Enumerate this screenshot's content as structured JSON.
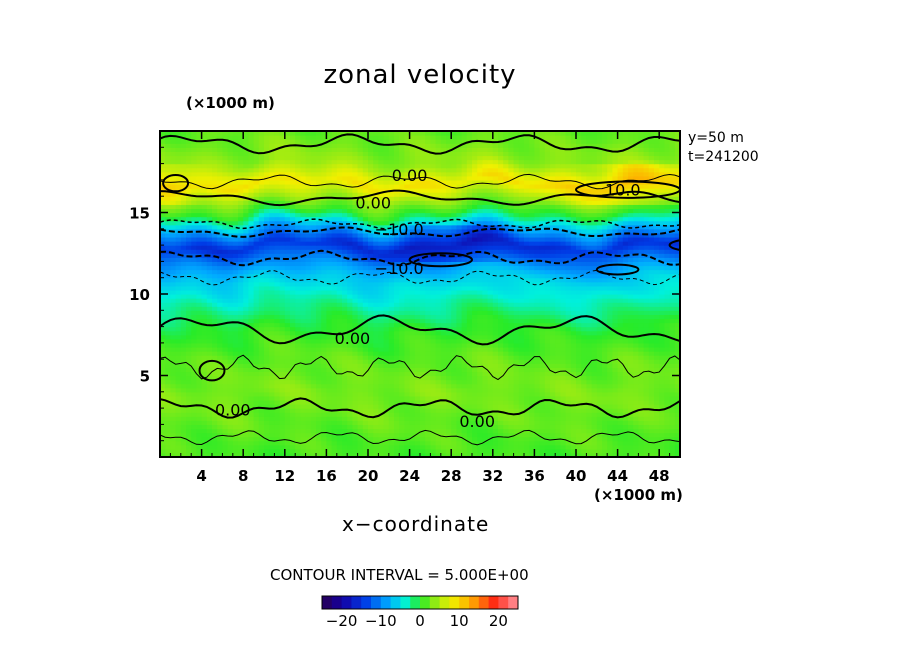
{
  "chart_data": {
    "type": "heatmap",
    "title": "zonal velocity",
    "xlabel": "x−coordinate",
    "x_unit_label": "(×1000 m)",
    "y_unit_label": "(×1000 m)",
    "xlim": [
      0,
      50
    ],
    "ylim": [
      0,
      20
    ],
    "x_ticks": [
      4,
      8,
      12,
      16,
      20,
      24,
      28,
      32,
      36,
      40,
      44,
      48
    ],
    "y_ticks": [
      5,
      10,
      15
    ],
    "info": [
      "y=50  m",
      "t=241200"
    ],
    "contour_interval_text": "CONTOUR INTERVAL = 5.000E+00",
    "contour_labels": [
      {
        "text": "0.00",
        "x": 24,
        "y": 17.3
      },
      {
        "text": "0.00",
        "x": 20.5,
        "y": 15.6
      },
      {
        "text": "10.0",
        "x": 44.5,
        "y": 16.4
      },
      {
        "text": "−10.0",
        "x": 23,
        "y": 14.0
      },
      {
        "text": "−10.0",
        "x": 23,
        "y": 11.6
      },
      {
        "text": "0.00",
        "x": 18.5,
        "y": 7.3
      },
      {
        "text": "0.00",
        "x": 7,
        "y": 2.9
      },
      {
        "text": "0.00",
        "x": 30.5,
        "y": 2.2
      }
    ],
    "field_profile": {
      "y": [
        0,
        2,
        4,
        6,
        8,
        10,
        11,
        12,
        13,
        14,
        15,
        16,
        16.8,
        18,
        20
      ],
      "u": [
        1,
        2,
        3,
        2,
        0,
        -4,
        -6,
        -10,
        -15,
        -8,
        0,
        5,
        9,
        4,
        2
      ]
    },
    "colorbar": {
      "range": [
        -25,
        25
      ],
      "ticks": [
        "−20",
        "−10",
        "0",
        "10",
        "20"
      ],
      "tick_values": [
        -20,
        -10,
        0,
        10,
        20
      ]
    }
  }
}
